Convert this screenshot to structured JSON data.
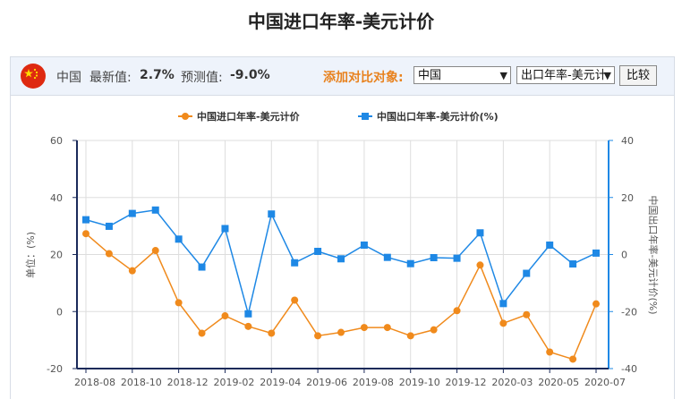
{
  "page_title": "中国进口年率-美元计价",
  "toolbar": {
    "country": "中国",
    "latest_label": "最新值:",
    "latest_value": "2.7%",
    "forecast_label": "预测值:",
    "forecast_value": "-9.0%",
    "compare_label": "添加对比对象:",
    "compare_country": "中国",
    "compare_indicator": "出口年率-美元计",
    "compare_button": "比较"
  },
  "colors": {
    "series1": "#f08a1c",
    "series2": "#1e88e5",
    "axis_left": "#1a2a5a",
    "axis_right": "#1e88e5",
    "grid": "#dddddd"
  },
  "chart_data": {
    "type": "line",
    "x": [
      "2018-08",
      "2018-09",
      "2018-10",
      "2018-11",
      "2018-12",
      "2019-01",
      "2019-02",
      "2019-03",
      "2019-04",
      "2019-05",
      "2019-06",
      "2019-07",
      "2019-08",
      "2019-09",
      "2019-10",
      "2019-11",
      "2019-12",
      "2020-01",
      "2020-03",
      "2020-04",
      "2020-05",
      "2020-06",
      "2020-07"
    ],
    "xtick_labels": [
      "2018-08",
      "2018-10",
      "2018-12",
      "2019-02",
      "2019-04",
      "2019-06",
      "2019-08",
      "2019-10",
      "2019-12",
      "2020-03",
      "2020-05",
      "2020-07"
    ],
    "series": [
      {
        "name": "中国进口年率-美元计价",
        "axis": "left",
        "marker": "circle",
        "values": [
          27.3,
          20.3,
          14.3,
          21.4,
          3.1,
          -7.6,
          -1.5,
          -5.2,
          -7.6,
          4.0,
          -8.5,
          -7.3,
          -5.6,
          -5.6,
          -8.5,
          -6.4,
          0.3,
          16.3,
          -4.1,
          -1.1,
          -14.2,
          -16.7,
          2.7
        ]
      },
      {
        "name": "中国出口年率-美元计价(%)",
        "axis": "right",
        "marker": "square",
        "values": [
          12.2,
          9.9,
          14.4,
          15.6,
          5.4,
          -4.4,
          9.1,
          -20.8,
          14.2,
          -2.9,
          1.1,
          -1.5,
          3.3,
          -1.0,
          -3.2,
          -1.1,
          -1.3,
          7.6,
          -17.2,
          -6.6,
          3.3,
          -3.3,
          0.5
        ]
      }
    ],
    "ylabel": "单位：(%)",
    "y2label": "中国出口年率-美元计价(%)",
    "ylim": [
      -20,
      60
    ],
    "y2lim": [
      -40,
      40
    ],
    "yticks": [
      -20,
      0,
      20,
      40,
      60
    ],
    "y2ticks": [
      -40,
      -20,
      0,
      20,
      40
    ],
    "grid": true,
    "legend_position": "top"
  }
}
